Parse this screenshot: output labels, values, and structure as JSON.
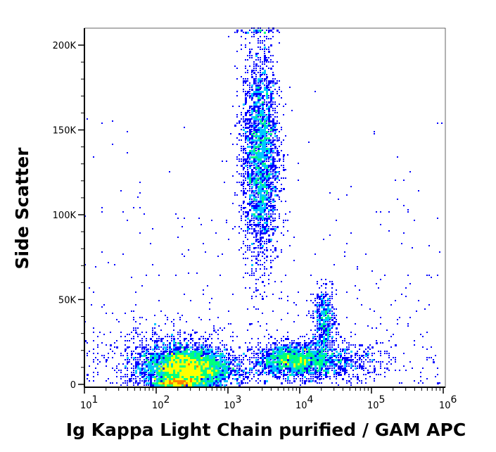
{
  "chart_data": {
    "type": "scatter",
    "subtype": "flow-cytometry density dot plot",
    "title": "",
    "xlabel": "Ig Kappa Light Chain purified / GAM APC",
    "ylabel": "Side Scatter",
    "x_scale": "log",
    "xlim": [
      10,
      1070000
    ],
    "ylim": [
      -1700,
      210000
    ],
    "x_ticks": [
      {
        "value": 10,
        "base": "10",
        "exp": "1"
      },
      {
        "value": 100,
        "base": "10",
        "exp": "2"
      },
      {
        "value": 1000,
        "base": "10",
        "exp": "3"
      },
      {
        "value": 10000,
        "base": "10",
        "exp": "4"
      },
      {
        "value": 100000,
        "base": "10",
        "exp": "5"
      },
      {
        "value": 1000000,
        "base": "10",
        "exp": "6"
      }
    ],
    "y_ticks": [
      {
        "value": 0,
        "label": "0"
      },
      {
        "value": 50000,
        "label": "50K"
      },
      {
        "value": 100000,
        "label": "100K"
      },
      {
        "value": 150000,
        "label": "150K"
      },
      {
        "value": 200000,
        "label": "200K"
      }
    ],
    "grid": false,
    "populations": [
      {
        "name": "negative-lymphocytes",
        "log_x_center": 2.45,
        "log_x_sd": 0.3,
        "y_center": 9000,
        "y_sd": 6000,
        "count": 3800
      },
      {
        "name": "negative-debris-floor",
        "log_x_center": 2.3,
        "log_x_sd": 0.15,
        "y_center": 1000,
        "y_sd": 1200,
        "count": 700
      },
      {
        "name": "negative-broad-tail",
        "log_x_center": 2.2,
        "log_x_sd": 0.45,
        "y_center": 12000,
        "y_sd": 11000,
        "count": 900
      },
      {
        "name": "granulocytes",
        "log_x_center": 3.45,
        "log_x_sd": 0.13,
        "y_center": 135000,
        "y_sd": 33000,
        "count": 2600
      },
      {
        "name": "kappa-positive",
        "log_x_center": 3.95,
        "log_x_sd": 0.3,
        "y_center": 14000,
        "y_sd": 5000,
        "count": 1800
      },
      {
        "name": "kappa-positive-tail",
        "log_x_center": 4.6,
        "log_x_sd": 0.35,
        "y_center": 13000,
        "y_sd": 6000,
        "count": 400
      },
      {
        "name": "monocytes",
        "log_x_center": 4.35,
        "log_x_sd": 0.08,
        "y_center": 38000,
        "y_sd": 9000,
        "count": 450
      }
    ],
    "density_colors": [
      "#0000ff",
      "#00c8ff",
      "#00ff80",
      "#ffff00",
      "#ff8000",
      "#ff0000"
    ]
  }
}
